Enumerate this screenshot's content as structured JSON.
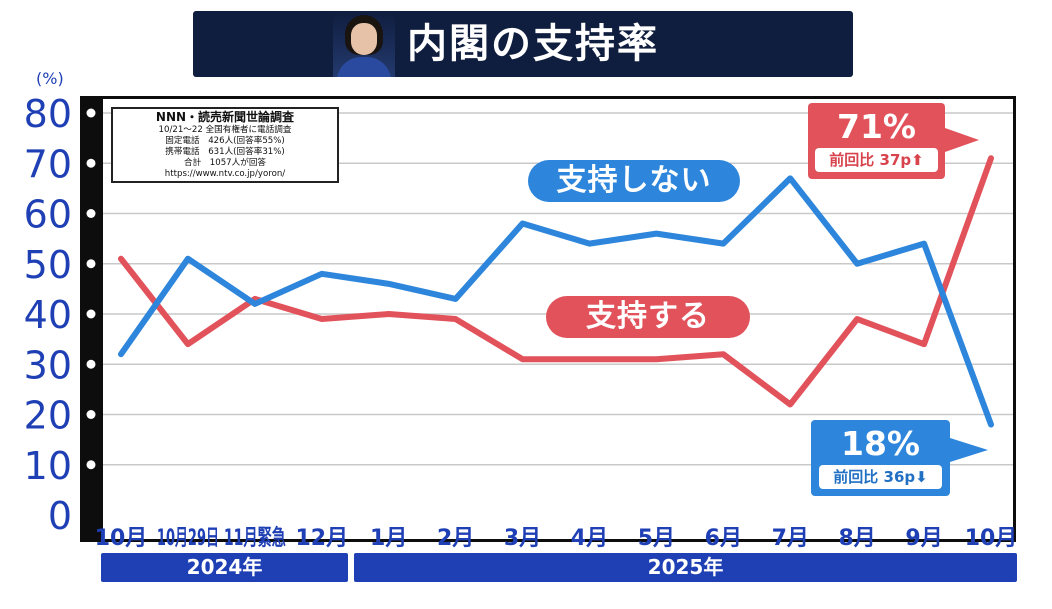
{
  "title": "内閣の支持率",
  "survey": {
    "title": "NNN・読売新聞世論調査",
    "lines": [
      "10/21～22 全国有権者に電話調査",
      "固定電話　426人(回答率55%)",
      "携帯電話　631人(回答率31%)",
      "合計　1057人が回答",
      "https://www.ntv.co.jp/yoron/"
    ]
  },
  "callouts": {
    "support": {
      "value": "71%",
      "change": "前回比 37p⬆"
    },
    "oppose": {
      "value": "18%",
      "change": "前回比 36p⬇"
    }
  },
  "years": [
    "2024年",
    "2025年"
  ],
  "colors": {
    "support": "#e1525b",
    "oppose": "#2d86db",
    "axis_text": "#1f3fb5",
    "title_bg": "#0f1d3e"
  },
  "chart_data": {
    "type": "line",
    "categories": [
      "10月",
      "10月29日",
      "11月緊急",
      "12月",
      "1月",
      "2月",
      "3月",
      "4月",
      "5月",
      "6月",
      "7月",
      "8月",
      "9月",
      "10月"
    ],
    "ylabel": "(%)",
    "ylim": [
      0,
      80
    ],
    "yticks": [
      0,
      10,
      20,
      30,
      40,
      50,
      60,
      70,
      80
    ],
    "grid": true,
    "series": [
      {
        "name": "支持する",
        "color": "#e1525b",
        "values": [
          51,
          34,
          43,
          39,
          40,
          39,
          31,
          31,
          31,
          32,
          22,
          39,
          34,
          71
        ]
      },
      {
        "name": "支持しない",
        "color": "#2d86db",
        "values": [
          32,
          51,
          42,
          48,
          46,
          43,
          58,
          54,
          56,
          54,
          67,
          50,
          54,
          18
        ]
      }
    ]
  }
}
